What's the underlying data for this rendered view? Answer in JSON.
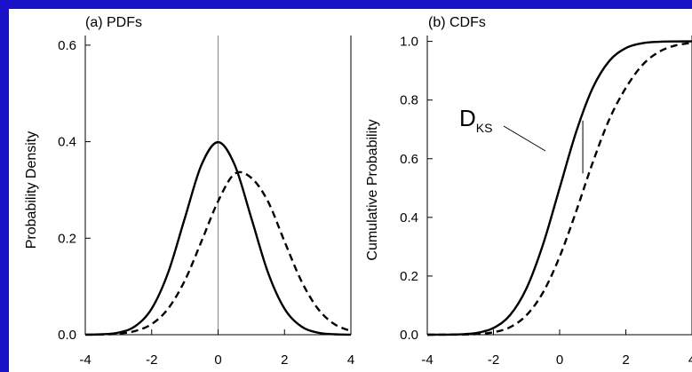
{
  "chart_data": [
    {
      "type": "line",
      "title": "(a) PDFs",
      "xlabel": "",
      "ylabel": "Probability Density",
      "xlim": [
        -4,
        4
      ],
      "ylim": [
        0,
        0.62
      ],
      "xticks": [
        "-4",
        "-2",
        "0",
        "2",
        "4"
      ],
      "yticks": [
        "0.0",
        "0.2",
        "0.4",
        "0.6"
      ],
      "grid": false,
      "vertical_reference_x": 0,
      "series": [
        {
          "style": "solid",
          "x": [
            -4,
            -3.5,
            -3,
            -2.5,
            -2,
            -1.5,
            -1,
            -0.5,
            0,
            0.5,
            1,
            1.5,
            2,
            2.5,
            3,
            3.5,
            4
          ],
          "y": [
            0.0001,
            0.0009,
            0.0044,
            0.0175,
            0.054,
            0.1295,
            0.242,
            0.352,
            0.399,
            0.352,
            0.242,
            0.1295,
            0.054,
            0.0175,
            0.0044,
            0.0009,
            0.0001
          ]
        },
        {
          "style": "dashed",
          "x": [
            -4,
            -3.5,
            -3,
            -2.5,
            -2,
            -1.5,
            -1,
            -0.5,
            0,
            0.5,
            1,
            1.5,
            2,
            2.5,
            3,
            3.5,
            4
          ],
          "y": [
            0.0001,
            0.0005,
            0.0022,
            0.0076,
            0.022,
            0.0545,
            0.1125,
            0.1935,
            0.2765,
            0.3335,
            0.325,
            0.2765,
            0.1935,
            0.1125,
            0.0545,
            0.022,
            0.0076
          ]
        }
      ]
    },
    {
      "type": "line",
      "title": "(b) CDFs",
      "xlabel": "",
      "ylabel": "Cumulative Probability",
      "xlim": [
        -4,
        4
      ],
      "ylim": [
        0,
        1.02
      ],
      "xticks": [
        "-4",
        "-2",
        "0",
        "2",
        "4"
      ],
      "yticks": [
        "0.0",
        "0.2",
        "0.4",
        "0.6",
        "0.8",
        "1.0"
      ],
      "grid": false,
      "annotation": {
        "text": "D",
        "subscript": "KS",
        "x": 0.7,
        "y_top": 0.73,
        "y_bottom": 0.55
      },
      "series": [
        {
          "style": "solid",
          "x": [
            -4,
            -3.5,
            -3,
            -2.5,
            -2,
            -1.5,
            -1,
            -0.5,
            0,
            0.5,
            1,
            1.5,
            2,
            2.5,
            3,
            3.5,
            4
          ],
          "y": [
            0.0,
            0.0002,
            0.0013,
            0.0062,
            0.0228,
            0.0668,
            0.1587,
            0.3085,
            0.5,
            0.6915,
            0.8413,
            0.9332,
            0.9772,
            0.9938,
            0.9987,
            0.9998,
            1.0
          ]
        },
        {
          "style": "dashed",
          "x": [
            -4,
            -3.5,
            -3,
            -2.5,
            -2,
            -1.5,
            -1,
            -0.5,
            0,
            0.5,
            1,
            1.5,
            2,
            2.5,
            3,
            3.5,
            4
          ],
          "y": [
            0.0,
            0.0001,
            0.0005,
            0.0022,
            0.0082,
            0.0256,
            0.0668,
            0.1446,
            0.2659,
            0.4207,
            0.5871,
            0.734,
            0.8413,
            0.9192,
            0.9641,
            0.9861,
            0.9953
          ]
        }
      ]
    }
  ]
}
